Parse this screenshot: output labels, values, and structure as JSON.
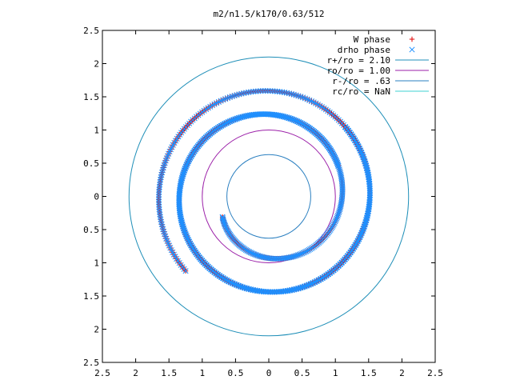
{
  "chart_data": {
    "type": "scatter",
    "title": "m2/n1.5/k170/0.63/512",
    "xlabel": "",
    "ylabel": "",
    "xlim": [
      -2.5,
      2.5
    ],
    "ylim": [
      -2.5,
      2.5
    ],
    "xticks": [
      -2.5,
      -2,
      -1.5,
      -1,
      -0.5,
      0,
      0.5,
      1,
      1.5,
      2,
      2.5
    ],
    "xtick_labels": [
      "2.5",
      "2",
      "1.5",
      "1",
      "0.5",
      "0",
      "0.5",
      "1",
      "1.5",
      "2",
      "2.5"
    ],
    "yticks": [
      -2.5,
      -2,
      -1.5,
      -1,
      -0.5,
      0,
      0.5,
      1,
      1.5,
      2,
      2.5
    ],
    "ytick_labels": [
      "2.5",
      "2",
      "1.5",
      "1",
      "0.5",
      "0",
      "0.5",
      "1",
      "1.5",
      "2",
      "2.5"
    ],
    "grid": false,
    "legend_position": "top-right",
    "series": [
      {
        "name": "W phase",
        "marker": "plus",
        "color": "#e00000",
        "arms": [
          {
            "a": 0.6,
            "theta_start": 3.56,
            "theta_end": 13.3,
            "count": 430
          },
          {
            "a": 0.6,
            "theta_start": 6.7,
            "theta_end": 16.44,
            "count": 430
          }
        ]
      },
      {
        "name": "drho phase",
        "marker": "cross",
        "color": "#1e90ff",
        "arms": [
          {
            "a": 0.6,
            "theta_start": 3.56,
            "theta_end": 13.3,
            "count": 430
          },
          {
            "a": 0.6,
            "theta_start": 6.7,
            "theta_end": 16.44,
            "count": 430
          }
        ]
      },
      {
        "name": "r+/ro = 2.10",
        "type": "circle",
        "radius": 2.1,
        "color": "#1f8fb8"
      },
      {
        "name": "ro/ro = 1.00",
        "type": "circle",
        "radius": 1.0,
        "color": "#9b1fa8"
      },
      {
        "name": "r-/ro = .63",
        "type": "circle",
        "radius": 0.63,
        "color": "#2a7fc0"
      },
      {
        "name": "rc/ro = NaN",
        "type": "circle",
        "radius": null,
        "color": "#3fd0d0"
      }
    ]
  }
}
